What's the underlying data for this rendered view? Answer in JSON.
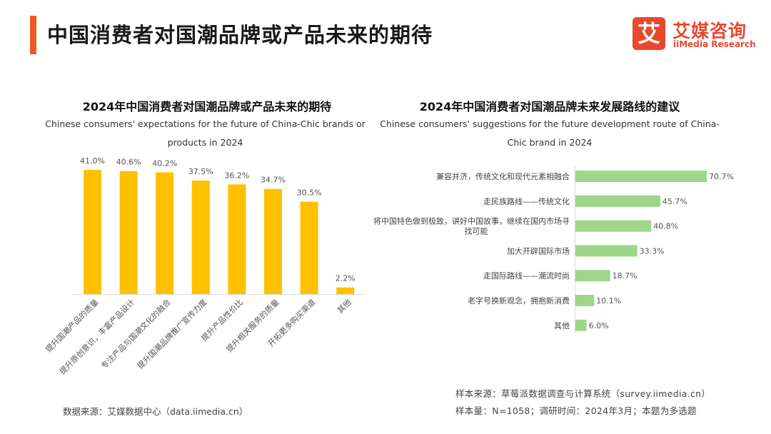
{
  "page": {
    "title": "中国消费者对国潮品牌或产品未来的期待"
  },
  "logo": {
    "mark": "艾",
    "name_cn": "艾媒咨询",
    "name_en": "iiMedia Research"
  },
  "colors": {
    "accent": "#ee5a24",
    "left_bars": "#ffc000",
    "right_bars": "#9fd68a"
  },
  "chart_data": [
    {
      "type": "bar",
      "orientation": "vertical",
      "title": "2024年中国消费者对国潮品牌或产品未来的期待",
      "subtitle": "Chinese consumers' expectations for the future of China-Chic brands or products in 2024",
      "categories": [
        "提升国潮产品的质量",
        "提升原创意识，丰富产品设计",
        "专注产品与国潮文化的融合",
        "提升国潮品牌推广宣传力度",
        "提升产品性价比",
        "提升相关服务的质量",
        "开拓更多购买渠道",
        "其他"
      ],
      "values": [
        41.0,
        40.6,
        40.2,
        37.5,
        36.2,
        34.7,
        30.5,
        2.2
      ],
      "value_labels": [
        "41.0%",
        "40.6%",
        "40.2%",
        "37.5%",
        "36.2%",
        "34.7%",
        "30.5%",
        "2.2%"
      ],
      "unit": "%",
      "ylim": [
        0,
        45
      ],
      "grid": false
    },
    {
      "type": "bar",
      "orientation": "horizontal",
      "title": "2024年中国消费者对国潮品牌未来发展路线的建议",
      "subtitle": "Chinese consumers' suggestions for the future development route of China-Chic brand in 2024",
      "categories": [
        "兼容并济，传统文化和现代元素相融合",
        "走民族路线——传统文化",
        "将中国特色做到极致，讲好中国故事，继续在国内市场寻找可能",
        "加大开辟国际市场",
        "走国际路线——潮流时尚",
        "老字号换新观念，拥抱新消费",
        "其他"
      ],
      "values": [
        70.7,
        45.7,
        40.8,
        33.3,
        18.7,
        10.1,
        6.0
      ],
      "value_labels": [
        "70.7%",
        "45.7%",
        "40.8%",
        "33.3%",
        "18.7%",
        "10.1%",
        "6.0%"
      ],
      "unit": "%",
      "xlim": [
        0,
        70.7
      ],
      "grid": false
    }
  ],
  "footnotes": {
    "left_source": "数据来源：艾媒数据中心（data.iimedia.cn）",
    "right_source": "样本来源：草莓派数据调查与计算系统（survey.iimedia.cn）",
    "right_sample": "样本量：N=1058；调研时间：2024年3月；本题为多选题"
  }
}
